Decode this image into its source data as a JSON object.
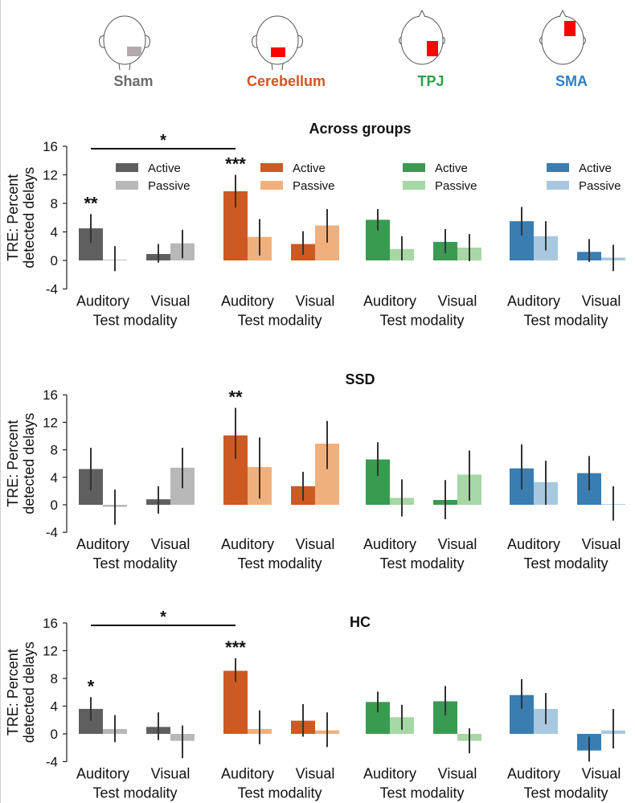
{
  "colors": {
    "sham": {
      "active": "#5f5f5f",
      "passive": "#b8b8b8",
      "label": "#6b6b6b"
    },
    "cerebellum": {
      "active": "#cc5a22",
      "passive": "#efb07d",
      "label": "#d4541e"
    },
    "tpj": {
      "active": "#3b9a52",
      "passive": "#a6d7a4",
      "label": "#2e9e4a"
    },
    "sma": {
      "active": "#3a7db0",
      "passive": "#a9c8e0",
      "label": "#2f7ec2"
    },
    "marker": "#ff0000",
    "sham_marker": "#b3a9ac"
  },
  "header": {
    "regions": [
      {
        "key": "sham",
        "label": "Sham",
        "marker": "occipital",
        "icon": "head-back-icon"
      },
      {
        "key": "cerebellum",
        "label": "Cerebellum",
        "marker": "cerebellum",
        "icon": "head-back-icon"
      },
      {
        "key": "tpj",
        "label": "TPJ",
        "marker": "tpj",
        "icon": "head-top-icon"
      },
      {
        "key": "sma",
        "label": "SMA",
        "marker": "sma",
        "icon": "head-top-icon"
      }
    ]
  },
  "common": {
    "ylabel_lines": [
      "TRE: Percent",
      "detected delays"
    ],
    "xlabel": "Test modality",
    "categories": [
      "Auditory",
      "Visual"
    ],
    "legend": [
      "Active",
      "Passive"
    ],
    "ylim": [
      -4,
      16
    ],
    "yticks": [
      "-4",
      "0",
      "4",
      "8",
      "12",
      "16"
    ]
  },
  "chart_data": [
    {
      "type": "bar",
      "title": "Across groups",
      "groups": [
        "Sham",
        "Cerebellum",
        "TPJ",
        "SMA"
      ],
      "categories": [
        "Auditory",
        "Visual"
      ],
      "series": [
        {
          "name": "Active",
          "values": [
            [
              4.5,
              0.9
            ],
            [
              9.7,
              2.3
            ],
            [
              5.7,
              2.6
            ],
            [
              5.5,
              1.2
            ]
          ],
          "ci": [
            [
              [
                2.5,
                6.5
              ],
              [
                -0.3,
                2.3
              ]
            ],
            [
              [
                7.4,
                12.0
              ],
              [
                0.8,
                4.1
              ]
            ],
            [
              [
                4.2,
                7.2
              ],
              [
                1.0,
                4.4
              ]
            ],
            [
              [
                3.5,
                7.5
              ],
              [
                -0.2,
                3.0
              ]
            ]
          ]
        },
        {
          "name": "Passive",
          "values": [
            [
              0.1,
              2.4
            ],
            [
              3.3,
              4.9
            ],
            [
              1.6,
              1.8
            ],
            [
              3.4,
              0.4
            ]
          ],
          "ci": [
            [
              [
                -1.5,
                2.0
              ],
              [
                0.3,
                4.3
              ]
            ],
            [
              [
                0.7,
                5.8
              ],
              [
                2.5,
                7.2
              ]
            ],
            [
              [
                0.0,
                3.4
              ],
              [
                -0.1,
                3.7
              ]
            ],
            [
              [
                1.4,
                5.5
              ],
              [
                -1.5,
                2.2
              ]
            ]
          ]
        }
      ],
      "annotations": [
        {
          "text": "**",
          "group": 0,
          "category": 0,
          "series": 0
        },
        {
          "text": "***",
          "group": 1,
          "category": 0,
          "series": 0
        },
        {
          "text": "*",
          "bracket_from_group": 0,
          "bracket_to_group": 1,
          "category": 0
        }
      ]
    },
    {
      "type": "bar",
      "title": "SSD",
      "groups": [
        "Sham",
        "Cerebellum",
        "TPJ",
        "SMA"
      ],
      "categories": [
        "Auditory",
        "Visual"
      ],
      "series": [
        {
          "name": "Active",
          "values": [
            [
              5.2,
              0.8
            ],
            [
              10.1,
              2.7
            ],
            [
              6.6,
              0.7
            ],
            [
              5.3,
              4.6
            ]
          ],
          "ci": [
            [
              [
                2.1,
                8.3
              ],
              [
                -1.3,
                2.7
              ]
            ],
            [
              [
                6.7,
                14.1
              ],
              [
                0.6,
                4.8
              ]
            ],
            [
              [
                4.2,
                9.1
              ],
              [
                -2.1,
                3.6
              ]
            ],
            [
              [
                2.2,
                8.8
              ],
              [
                2.1,
                7.1
              ]
            ]
          ]
        },
        {
          "name": "Passive",
          "values": [
            [
              -0.3,
              5.4
            ],
            [
              5.5,
              8.9
            ],
            [
              1.0,
              4.4
            ],
            [
              3.3,
              0.1
            ]
          ],
          "ci": [
            [
              [
                -2.9,
                2.2
              ],
              [
                2.4,
                8.3
              ]
            ],
            [
              [
                0.9,
                9.8
              ],
              [
                5.2,
                12.2
              ]
            ],
            [
              [
                -1.7,
                3.7
              ],
              [
                0.6,
                7.9
              ]
            ],
            [
              [
                0.0,
                6.4
              ],
              [
                -2.3,
                2.7
              ]
            ]
          ]
        }
      ],
      "annotations": [
        {
          "text": "**",
          "group": 1,
          "category": 0,
          "series": 0
        }
      ]
    },
    {
      "type": "bar",
      "title": "HC",
      "groups": [
        "Sham",
        "Cerebellum",
        "TPJ",
        "SMA"
      ],
      "categories": [
        "Auditory",
        "Visual"
      ],
      "series": [
        {
          "name": "Active",
          "values": [
            [
              3.6,
              1.0
            ],
            [
              9.1,
              1.9
            ],
            [
              4.6,
              4.7
            ],
            [
              5.6,
              -2.4
            ]
          ],
          "ci": [
            [
              [
                1.9,
                5.3
              ],
              [
                -0.9,
                3.1
              ]
            ],
            [
              [
                7.5,
                10.9
              ],
              [
                -0.4,
                4.3
              ]
            ],
            [
              [
                3.1,
                6.1
              ],
              [
                2.7,
                6.9
              ]
            ],
            [
              [
                3.6,
                7.9
              ],
              [
                -4.0,
                -0.4
              ]
            ]
          ]
        },
        {
          "name": "Passive",
          "values": [
            [
              0.7,
              -1.0
            ],
            [
              0.7,
              0.5
            ],
            [
              2.4,
              -1.0
            ],
            [
              3.6,
              0.5
            ]
          ],
          "ci": [
            [
              [
                -1.2,
                2.7
              ],
              [
                -3.5,
                1.2
              ]
            ],
            [
              [
                -1.5,
                3.4
              ],
              [
                -1.9,
                3.1
              ]
            ],
            [
              [
                0.6,
                4.2
              ],
              [
                -2.8,
                0.8
              ]
            ],
            [
              [
                1.4,
                5.9
              ],
              [
                -2.1,
                3.6
              ]
            ]
          ]
        }
      ],
      "annotations": [
        {
          "text": "*",
          "group": 0,
          "category": 0,
          "series": 0
        },
        {
          "text": "***",
          "group": 1,
          "category": 0,
          "series": 0
        },
        {
          "text": "*",
          "bracket_from_group": 0,
          "bracket_to_group": 1,
          "category": 0
        }
      ]
    }
  ]
}
